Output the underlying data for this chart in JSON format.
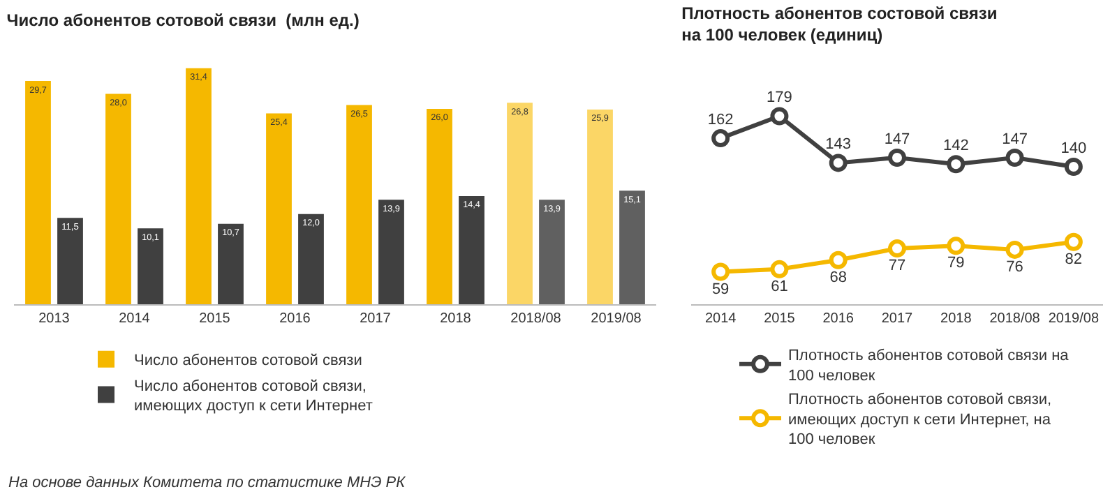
{
  "chart_data": [
    {
      "type": "bar",
      "title": "Число абонентов сотовой связи  (млн ед.)",
      "categories": [
        "2013",
        "2014",
        "2015",
        "2016",
        "2017",
        "2018",
        "2018/08",
        "2019/08"
      ],
      "series": [
        {
          "name": "Число абонентов сотовой связи",
          "color": "#f5b800",
          "colors": [
            "#f5b800",
            "#f5b800",
            "#f5b800",
            "#f5b800",
            "#f5b800",
            "#f5b800",
            "#fbd666",
            "#fbd666"
          ],
          "values": [
            29.7,
            28.0,
            31.4,
            25.4,
            26.5,
            26.0,
            26.8,
            25.9
          ],
          "value_labels": [
            "29,7",
            "28,0",
            "31,4",
            "25,4",
            "26,5",
            "26,0",
            "26,8",
            "25,9"
          ]
        },
        {
          "name": "Число абонентов сотовой связи, имеющих доступ к сети Интернет",
          "color": "#404040",
          "colors": [
            "#404040",
            "#404040",
            "#404040",
            "#404040",
            "#404040",
            "#404040",
            "#606060",
            "#606060"
          ],
          "values": [
            11.5,
            10.1,
            10.7,
            12.0,
            13.9,
            14.4,
            13.9,
            15.1
          ],
          "value_labels": [
            "11,5",
            "10,1",
            "10,7",
            "12,0",
            "13,9",
            "14,4",
            "13,9",
            "15,1"
          ]
        }
      ],
      "legend": "bottom",
      "grid": false,
      "annotations": [
        "На основе данных Комитета по статистике МНЭ РК"
      ]
    },
    {
      "type": "line",
      "title": "Плотность абонентов состовой связи на 100 человек (единиц)",
      "categories": [
        "2014",
        "2015",
        "2016",
        "2017",
        "2018",
        "2018/08",
        "2019/08"
      ],
      "series": [
        {
          "name": "Плотность абонентов сотовой связи на 100 человек",
          "color": "#404040",
          "values": [
            162,
            179,
            143,
            147,
            142,
            147,
            140
          ]
        },
        {
          "name": "Плотность абонентов сотовой связи, имеющих доступ к сети Интернет, на 100 человек",
          "color": "#f5b800",
          "values": [
            59,
            61,
            68,
            77,
            79,
            76,
            82
          ]
        }
      ],
      "data_labels": true,
      "marker": "circle",
      "line_style": "solid",
      "legend": "bottom",
      "grid": false
    }
  ]
}
